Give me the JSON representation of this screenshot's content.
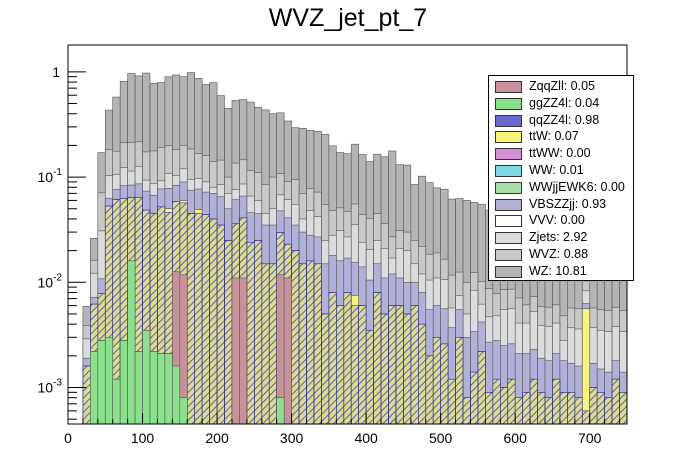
{
  "chart_data": {
    "type": "bar",
    "title": "WVZ_jet_pt_7",
    "xlabel": "",
    "ylabel": "",
    "xlim": [
      0,
      750
    ],
    "ylim": [
      0.00045,
      1.8
    ],
    "log_y": true,
    "stacked": true,
    "bin_width": 10,
    "x_ticks": [
      0,
      100,
      200,
      300,
      400,
      500,
      600,
      700
    ],
    "y_ticks": [
      {
        "value": 0.001,
        "base": "10",
        "exp": "-3"
      },
      {
        "value": 0.01,
        "base": "10",
        "exp": "-2"
      },
      {
        "value": 0.1,
        "base": "10",
        "exp": "-1"
      },
      {
        "value": 1,
        "base": "1",
        "exp": ""
      }
    ],
    "legend_position": "top-right",
    "legend": [
      {
        "label": "ZqqZll: 0.05",
        "color": "#c8909a"
      },
      {
        "label": "ggZZ4l: 0.04",
        "color": "#8be08b"
      },
      {
        "label": "qqZZ4l: 0.98",
        "color": "#6a6ad0"
      },
      {
        "label": "ttW: 0.07",
        "color": "#f5f57a"
      },
      {
        "label": "ttWW: 0.00",
        "color": "#d890d8"
      },
      {
        "label": "WW: 0.01",
        "color": "#7ad8e0"
      },
      {
        "label": "WWjjEWK6: 0.00",
        "color": "#a8e0a8"
      },
      {
        "label": "VBSZZjj: 0.93",
        "color": "#b0b0d8"
      },
      {
        "label": "VVV: 0.00",
        "color": "#ffffff"
      },
      {
        "label": "Zjets: 2.92",
        "color": "#dcdcdc"
      },
      {
        "label": "WVZ: 0.88",
        "color": "#c8c8c8"
      },
      {
        "label": "WZ: 10.81",
        "color": "#b4b4b4"
      }
    ],
    "bins_x_low": [
      20,
      30,
      40,
      50,
      60,
      70,
      80,
      90,
      100,
      110,
      120,
      130,
      140,
      150,
      160,
      170,
      180,
      190,
      200,
      210,
      220,
      230,
      240,
      250,
      260,
      270,
      280,
      290,
      300,
      310,
      320,
      330,
      340,
      350,
      360,
      370,
      380,
      390,
      400,
      410,
      420,
      430,
      440,
      450,
      460,
      470,
      480,
      490,
      500,
      510,
      520,
      530,
      540,
      550,
      560,
      570,
      580,
      590,
      600,
      610,
      620,
      630,
      640,
      650,
      660,
      670,
      680,
      690,
      700,
      710,
      720,
      730,
      740
    ],
    "series": [
      {
        "name": "ggZZ4l",
        "color": "#8be08b",
        "values": [
          0,
          0.0022,
          0.0028,
          0.003,
          0.0012,
          0.0028,
          0.016,
          0.0022,
          0.0035,
          0.0022,
          0.0021,
          0.0021,
          0.0016,
          0.0008,
          0,
          0,
          0,
          0,
          0,
          0,
          0,
          0,
          0,
          0,
          0,
          0,
          0.0008,
          0,
          0,
          0,
          0,
          0,
          0,
          0,
          0,
          0,
          0,
          0,
          0,
          0,
          0,
          0,
          0,
          0,
          0,
          0,
          0,
          0,
          0,
          0,
          0,
          0,
          0,
          0,
          0,
          0,
          0,
          0,
          0,
          0,
          0,
          0,
          0,
          0,
          0,
          0,
          0,
          0,
          0,
          0,
          0,
          0,
          0
        ]
      },
      {
        "name": "ZqqZll",
        "color": "#c8909a",
        "values": [
          0,
          0,
          0,
          0,
          0,
          0,
          0,
          0,
          0,
          0,
          0,
          0,
          0.011,
          0.011,
          0,
          0,
          0,
          0,
          0,
          0,
          0.011,
          0.011,
          0,
          0,
          0,
          0,
          0.011,
          0.011,
          0,
          0,
          0,
          0,
          0,
          0,
          0,
          0,
          0,
          0,
          0,
          0,
          0,
          0,
          0,
          0,
          0,
          0,
          0,
          0,
          0,
          0,
          0,
          0,
          0,
          0,
          0,
          0,
          0,
          0,
          0,
          0,
          0,
          0,
          0,
          0,
          0,
          0,
          0,
          0,
          0,
          0,
          0,
          0,
          0
        ]
      },
      {
        "name": "qqZZ4l",
        "color": "#6a6ad0",
        "values": [
          0.0016,
          0.004,
          0.005,
          0.05,
          0.06,
          0.06,
          0.048,
          0.062,
          0.045,
          0.043,
          0.05,
          0.044,
          0.046,
          0.045,
          0.045,
          0.045,
          0.044,
          0.04,
          0.035,
          0.025,
          0.025,
          0.03,
          0.024,
          0.025,
          0.015,
          0.015,
          0.018,
          0.012,
          0.02,
          0.015,
          0.016,
          0.015,
          0.005,
          0.008,
          0.006,
          0.008,
          0.006,
          0.006,
          0.0035,
          0.008,
          0.005,
          0.006,
          0.006,
          0.005,
          0.006,
          0.004,
          0.002,
          0.003,
          0.0026,
          0.0012,
          0.003,
          0.0008,
          0.0014,
          0.0022,
          0.0009,
          0.0012,
          0.001,
          0.0012,
          0.0008,
          0.0009,
          0.0012,
          0.0009,
          0.0008,
          0.0012,
          0.0009,
          0.0009,
          0.0008,
          0.0006,
          0.001,
          0.0009,
          0.0008,
          0.0012,
          0.0009
        ]
      },
      {
        "name": "ttW",
        "color": "#f5f57a",
        "values": [
          0,
          0,
          0,
          0,
          0,
          0,
          0,
          0,
          0,
          0,
          0,
          0.004,
          0,
          0.003,
          0,
          0.004,
          0,
          0,
          0,
          0,
          0,
          0,
          0,
          0,
          0,
          0,
          0,
          0,
          0,
          0,
          0,
          0,
          0,
          0,
          0,
          0,
          0.0015,
          0,
          0,
          0,
          0,
          0,
          0,
          0,
          0,
          0,
          0,
          0,
          0,
          0,
          0,
          0,
          0,
          0,
          0,
          0,
          0,
          0,
          0,
          0,
          0,
          0,
          0,
          0,
          0,
          0,
          0,
          0.005,
          0,
          0,
          0,
          0,
          0
        ]
      },
      {
        "name": "VBSZZjj",
        "color": "#b0b0d8",
        "values": [
          0.0003,
          0.001,
          0.003,
          0.01,
          0.015,
          0.02,
          0.02,
          0.022,
          0.025,
          0.022,
          0.025,
          0.028,
          0.025,
          0.03,
          0.03,
          0.028,
          0.028,
          0.03,
          0.03,
          0.025,
          0.025,
          0.025,
          0.022,
          0.02,
          0.02,
          0.02,
          0.018,
          0.018,
          0.015,
          0.015,
          0.012,
          0.012,
          0.01,
          0.01,
          0.01,
          0.009,
          0.008,
          0.008,
          0.007,
          0.007,
          0.006,
          0.006,
          0.005,
          0.005,
          0.004,
          0.004,
          0.0035,
          0.003,
          0.003,
          0.0025,
          0.0025,
          0.0022,
          0.002,
          0.002,
          0.0018,
          0.0016,
          0.0015,
          0.0014,
          0.0013,
          0.0012,
          0.0011,
          0.001,
          0.001,
          0.0009,
          0.0009,
          0.0008,
          0.0008,
          0.0007,
          0.0007,
          0.0006,
          0.0006,
          0.0006,
          0.0005
        ]
      },
      {
        "name": "Zjets",
        "color": "#dcdcdc",
        "values": [
          0.001,
          0.005,
          0.02,
          0.04,
          0.03,
          0.04,
          0.03,
          0.04,
          0.02,
          0.02,
          0.015,
          0.03,
          0.02,
          0.03,
          0.02,
          0.02,
          0.018,
          0.01,
          0.02,
          0.02,
          0.015,
          0.02,
          0.02,
          0.015,
          0.01,
          0.015,
          0.02,
          0.02,
          0.02,
          0.01,
          0.02,
          0.015,
          0.01,
          0.01,
          0.015,
          0.01,
          0.02,
          0.01,
          0.01,
          0.01,
          0.01,
          0.005,
          0.01,
          0.01,
          0.005,
          0.004,
          0.005,
          0.005,
          0.005,
          0.002,
          0.002,
          0.002,
          0.005,
          0.002,
          0.002,
          0.002,
          0.003,
          0.003,
          0.002,
          0.002,
          0.003,
          0.002,
          0.002,
          0.002,
          0.001,
          0.002,
          0.002,
          0.002,
          0.002,
          0.002,
          0.002,
          0.002,
          0.002
        ]
      },
      {
        "name": "WVZ",
        "color": "#c8c8c8",
        "values": [
          0.001,
          0.004,
          0.04,
          0.08,
          0.07,
          0.09,
          0.1,
          0.09,
          0.08,
          0.09,
          0.1,
          0.09,
          0.08,
          0.08,
          0.09,
          0.07,
          0.07,
          0.06,
          0.06,
          0.03,
          0.06,
          0.06,
          0.05,
          0.05,
          0.04,
          0.05,
          0.04,
          0.03,
          0.04,
          0.03,
          0.03,
          0.03,
          0.03,
          0.02,
          0.02,
          0.02,
          0.02,
          0.02,
          0.02,
          0.02,
          0.015,
          0.01,
          0.01,
          0.01,
          0.01,
          0.01,
          0.008,
          0.008,
          0.006,
          0.006,
          0.005,
          0.005,
          0.004,
          0.004,
          0.004,
          0.003,
          0.003,
          0.003,
          0.003,
          0.002,
          0.002,
          0.002,
          0.002,
          0.002,
          0.002,
          0.002,
          0.002,
          0.002,
          0.002,
          0.002,
          0.002,
          0.002,
          0.002
        ]
      },
      {
        "name": "WZ",
        "color": "#b4b4b4",
        "values": [
          0.002,
          0.01,
          0.1,
          0.25,
          0.4,
          0.6,
          0.75,
          0.7,
          0.8,
          0.6,
          0.6,
          0.7,
          0.75,
          0.7,
          0.8,
          0.7,
          0.6,
          0.65,
          0.45,
          0.35,
          0.4,
          0.4,
          0.4,
          0.35,
          0.35,
          0.3,
          0.3,
          0.25,
          0.2,
          0.22,
          0.2,
          0.2,
          0.2,
          0.15,
          0.12,
          0.12,
          0.15,
          0.12,
          0.1,
          0.12,
          0.12,
          0.15,
          0.1,
          0.1,
          0.06,
          0.08,
          0.07,
          0.06,
          0.06,
          0.05,
          0.05,
          0.05,
          0.045,
          0.045,
          0.04,
          0.04,
          0.035,
          0.035,
          0.03,
          0.03,
          0.03,
          0.025,
          0.02,
          0.02,
          0.015,
          0.015,
          0.01,
          0.005,
          0.01,
          0.005,
          0.005,
          0.006,
          0.005
        ]
      }
    ]
  }
}
